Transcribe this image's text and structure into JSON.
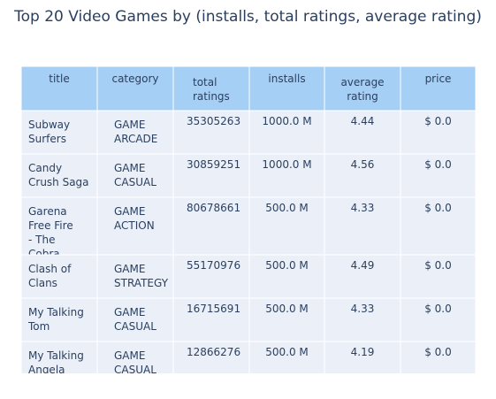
{
  "title": "Top 20 Video Games by (installs, total ratings, average rating)",
  "colors": {
    "header_fill": "#a6cff5",
    "cell_fill": "#ebf0f8",
    "line": "#ffffff",
    "text": "#2a3f5f"
  },
  "chart_data": {
    "type": "table",
    "columns": [
      "title",
      "category",
      "total ratings",
      "installs",
      "average rating",
      "price"
    ],
    "rows": [
      [
        "Subway Surfers",
        "GAME ARCADE",
        "35305263",
        "1000.0 M",
        "4.44",
        "$ 0.0"
      ],
      [
        "Candy Crush Saga",
        "GAME CASUAL",
        "30859251",
        "1000.0 M",
        "4.56",
        "$ 0.0"
      ],
      [
        "Garena Free Fire - The Cobra",
        "GAME ACTION",
        "80678661",
        "500.0 M",
        "4.33",
        "$ 0.0"
      ],
      [
        "Clash of Clans",
        "GAME STRATEGY",
        "55170976",
        "500.0 M",
        "4.49",
        "$ 0.0"
      ],
      [
        "My Talking Tom",
        "GAME CASUAL",
        "16715691",
        "500.0 M",
        "4.33",
        "$ 0.0"
      ],
      [
        "My Talking Angela",
        "GAME CASUAL",
        "12866276",
        "500.0 M",
        "4.19",
        "$ 0.0"
      ]
    ]
  }
}
